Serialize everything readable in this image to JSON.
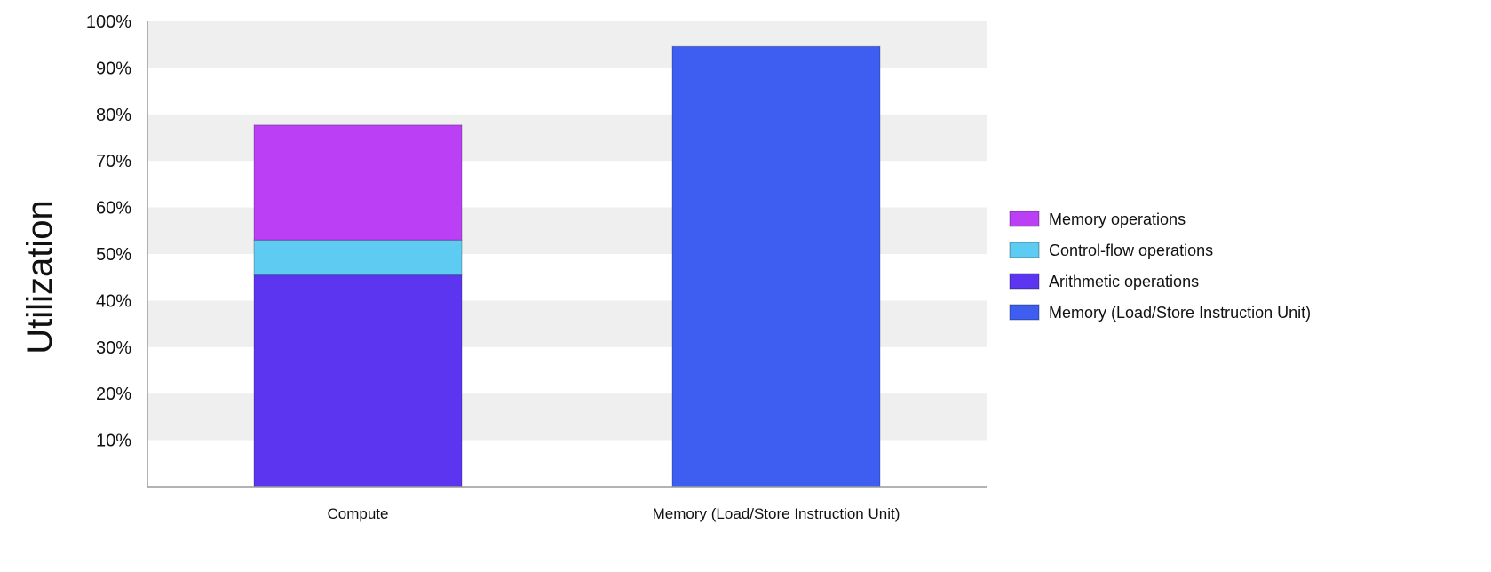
{
  "chart_data": {
    "type": "bar",
    "stacked": true,
    "ylabel": "Utilization",
    "xlabel": "",
    "ylim": [
      0,
      100
    ],
    "yticks": [
      10,
      20,
      30,
      40,
      50,
      60,
      70,
      80,
      90,
      100
    ],
    "ytick_suffix": "%",
    "grid": "alternating horizontal bands",
    "legend_position": "right",
    "categories": [
      "Compute",
      "Memory (Load/Store Instruction Unit)"
    ],
    "series": [
      {
        "name": "Arithmetic operations",
        "values": [
          45.5,
          0
        ],
        "color": "#5b35f0"
      },
      {
        "name": "Control-flow operations",
        "values": [
          7.5,
          0
        ],
        "color": "#5ecbf2"
      },
      {
        "name": "Memory operations",
        "values": [
          24.7,
          0
        ],
        "color": "#bb40f5"
      },
      {
        "name": "Memory (Load/Store Instruction Unit)",
        "values": [
          0,
          94.6
        ],
        "color": "#3d5ef0"
      }
    ],
    "legend_order": [
      "Memory operations",
      "Control-flow operations",
      "Arithmetic operations",
      "Memory (Load/Store Instruction Unit)"
    ]
  }
}
